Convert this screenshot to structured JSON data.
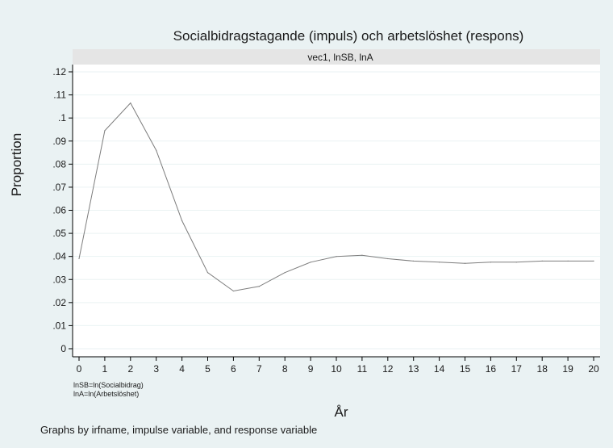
{
  "chart_data": {
    "type": "line",
    "title": "Socialbidragstagande (impuls) och arbetslöshet (respons)",
    "panel_label": "vec1, lnSB, lnA",
    "xlabel": "År",
    "ylabel": "Proportion",
    "x": [
      0,
      1,
      2,
      3,
      4,
      5,
      6,
      7,
      8,
      9,
      10,
      11,
      12,
      13,
      14,
      15,
      16,
      17,
      18,
      19,
      20
    ],
    "series": [
      {
        "values": [
          0.039,
          0.0945,
          0.1065,
          0.086,
          0.0555,
          0.033,
          0.025,
          0.027,
          0.033,
          0.0375,
          0.04,
          0.0405,
          0.039,
          0.038,
          0.0375,
          0.037,
          0.0375,
          0.0375,
          0.038,
          0.038,
          0.038
        ],
        "color": "#7d7d7d"
      }
    ],
    "xlim": [
      0,
      20
    ],
    "ylim": [
      0,
      0.12
    ],
    "xticks": [
      "0",
      "1",
      "2",
      "3",
      "4",
      "5",
      "6",
      "7",
      "8",
      "9",
      "10",
      "11",
      "12",
      "13",
      "14",
      "15",
      "16",
      "17",
      "18",
      "19",
      "20"
    ],
    "yticks": [
      {
        "value": 0,
        "label": "0"
      },
      {
        "value": 0.01,
        "label": ".01"
      },
      {
        "value": 0.02,
        "label": ".02"
      },
      {
        "value": 0.03,
        "label": ".03"
      },
      {
        "value": 0.04,
        "label": ".04"
      },
      {
        "value": 0.05,
        "label": ".05"
      },
      {
        "value": 0.06,
        "label": ".06"
      },
      {
        "value": 0.07,
        "label": ".07"
      },
      {
        "value": 0.08,
        "label": ".08"
      },
      {
        "value": 0.09,
        "label": ".09"
      },
      {
        "value": 0.1,
        "label": ".1"
      },
      {
        "value": 0.11,
        "label": ".11"
      },
      {
        "value": 0.12,
        "label": ".12"
      }
    ],
    "grid": true,
    "notes": [
      "lnSB=ln(Socialbidrag)",
      "lnA=ln(Arbetslöshet)"
    ],
    "caption": "Graphs by irfname, impulse variable, and response variable",
    "colors": {
      "background": "#eaf2f3",
      "plot_background": "#ffffff",
      "panel_header": "#e5e5e5",
      "gridline": "#eaf2f3"
    }
  }
}
